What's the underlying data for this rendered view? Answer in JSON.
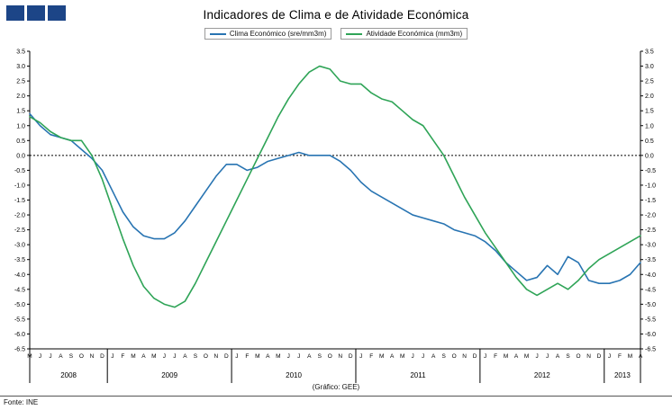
{
  "title": "Indicadores de Clima e de Atividade Económica",
  "logo": {
    "color": "#1c4587",
    "squares": 3
  },
  "footer": {
    "source": "Fonte: INE",
    "note": "(Gráfico: GEE)"
  },
  "chart_data": {
    "type": "line",
    "title": "Indicadores de Clima e de Atividade Económica",
    "ylim": [
      -6.5,
      3.5
    ],
    "y_step": 0.5,
    "zero_line": true,
    "legend_position": "top",
    "x_labels": [
      "M",
      "J",
      "J",
      "A",
      "S",
      "O",
      "N",
      "D",
      "J",
      "F",
      "M",
      "A",
      "M",
      "J",
      "J",
      "A",
      "S",
      "O",
      "N",
      "D",
      "J",
      "F",
      "M",
      "A",
      "M",
      "J",
      "J",
      "A",
      "S",
      "O",
      "N",
      "D",
      "J",
      "F",
      "M",
      "A",
      "M",
      "J",
      "J",
      "A",
      "S",
      "O",
      "N",
      "D",
      "J",
      "F",
      "M",
      "A",
      "M",
      "J",
      "J",
      "A",
      "S",
      "O",
      "N",
      "D",
      "J",
      "F",
      "M",
      "A"
    ],
    "years": [
      {
        "label": "2008",
        "start": 0,
        "end": 7
      },
      {
        "label": "2009",
        "start": 8,
        "end": 19
      },
      {
        "label": "2010",
        "start": 20,
        "end": 31
      },
      {
        "label": "2011",
        "start": 32,
        "end": 43
      },
      {
        "label": "2012",
        "start": 44,
        "end": 55
      },
      {
        "label": "2013",
        "start": 56,
        "end": 59
      }
    ],
    "series": [
      {
        "key": "clima",
        "name": "Clima Económico (sre/mm3m)",
        "color": "#2874b2",
        "values": [
          1.4,
          1.0,
          0.7,
          0.6,
          0.5,
          0.2,
          -0.1,
          -0.5,
          -1.2,
          -1.9,
          -2.4,
          -2.7,
          -2.8,
          -2.8,
          -2.6,
          -2.2,
          -1.7,
          -1.2,
          -0.7,
          -0.3,
          -0.3,
          -0.5,
          -0.4,
          -0.2,
          -0.1,
          0.0,
          0.1,
          0.0,
          0.0,
          0.0,
          -0.2,
          -0.5,
          -0.9,
          -1.2,
          -1.4,
          -1.6,
          -1.8,
          -2.0,
          -2.1,
          -2.2,
          -2.3,
          -2.5,
          -2.6,
          -2.7,
          -2.9,
          -3.2,
          -3.6,
          -3.9,
          -4.2,
          -4.1,
          -3.7,
          -4.0,
          -3.4,
          -3.6,
          -4.2,
          -4.3,
          -4.3,
          -4.2,
          -4.0,
          -3.6
        ]
      },
      {
        "key": "atividade",
        "name": "Atividade Económica (mm3m)",
        "color": "#2fa457",
        "values": [
          1.3,
          1.1,
          0.8,
          0.6,
          0.5,
          0.5,
          0.0,
          -0.8,
          -1.8,
          -2.8,
          -3.7,
          -4.4,
          -4.8,
          -5.0,
          -5.1,
          -4.9,
          -4.3,
          -3.6,
          -2.9,
          -2.2,
          -1.5,
          -0.8,
          -0.1,
          0.6,
          1.3,
          1.9,
          2.4,
          2.8,
          3.0,
          2.9,
          2.5,
          2.4,
          2.4,
          2.1,
          1.9,
          1.8,
          1.5,
          1.2,
          1.0,
          0.5,
          0.0,
          -0.7,
          -1.4,
          -2.0,
          -2.6,
          -3.1,
          -3.6,
          -4.1,
          -4.5,
          -4.7,
          -4.5,
          -4.3,
          -4.5,
          -4.2,
          -3.8,
          -3.5,
          -3.3,
          -3.1,
          -2.9,
          -2.7
        ]
      }
    ]
  }
}
